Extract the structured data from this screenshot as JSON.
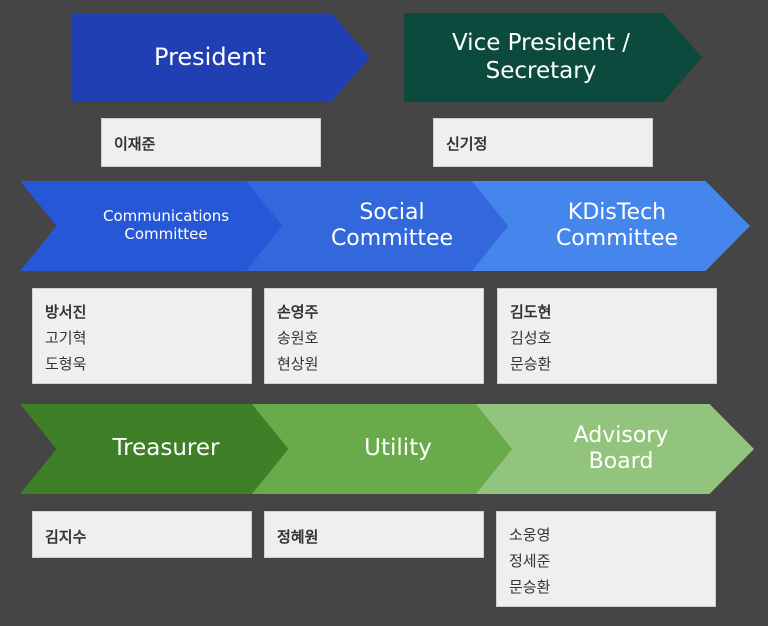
{
  "colors": {
    "background": "#454545",
    "president": "#1f3fb3",
    "vice_president": "#0b4a3c",
    "communications": "#2557d6",
    "social": "#3368dd",
    "kdistech": "#4586ec",
    "treasurer": "#3e7f28",
    "utility": "#69ab4b",
    "advisory": "#92c47d"
  },
  "roles": {
    "president": {
      "title": "President",
      "members": [
        "이재준"
      ]
    },
    "vice_president": {
      "title": "Vice President /\nSecretary",
      "members": [
        "신기정"
      ]
    },
    "communications": {
      "title": "Communications\nCommittee",
      "members": [
        "방서진",
        "고기혁",
        "도형욱"
      ]
    },
    "social": {
      "title": "Social\nCommittee",
      "members": [
        "손영주",
        "송원호",
        "현상원"
      ]
    },
    "kdistech": {
      "title": "KDisTech\nCommittee",
      "members": [
        "김도현",
        "김성호",
        "문승환"
      ]
    },
    "treasurer": {
      "title": "Treasurer",
      "members": [
        "김지수"
      ]
    },
    "utility": {
      "title": "Utility",
      "members": [
        "정혜원"
      ]
    },
    "advisory": {
      "title": "Advisory\nBoard",
      "members": [
        "소웅영",
        "정세준",
        "문승환"
      ]
    }
  }
}
